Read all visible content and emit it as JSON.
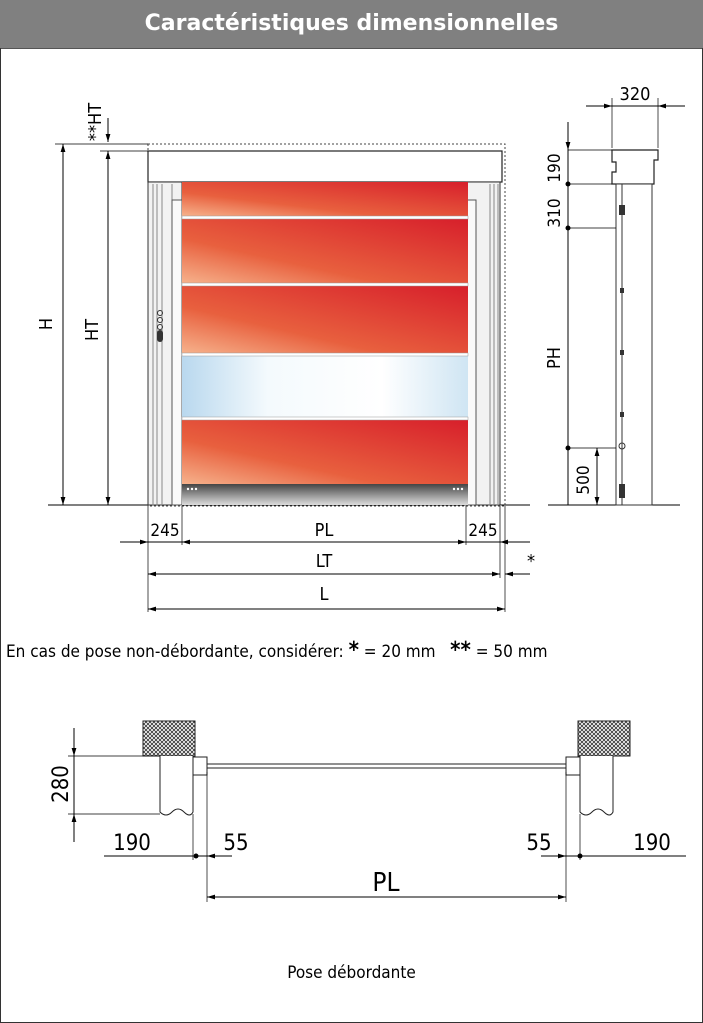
{
  "header": {
    "title": "Caractéristiques dimensionnelles"
  },
  "front_view": {
    "labels": {
      "H": "H",
      "HT": "HT",
      "HT_top": "**HT",
      "PL": "PL",
      "LT": "LT",
      "L": "L",
      "side_left": "245",
      "side_right": "245",
      "star": "*"
    }
  },
  "side_view": {
    "labels": {
      "depth": "320",
      "top": "190",
      "middle": "310",
      "PH": "PH",
      "bottom": "500"
    }
  },
  "note": {
    "text": "En cas de pose non-débordante, considérer:",
    "single_star": "*",
    "single_value": "= 20 mm",
    "double_star": "**",
    "double_value": "= 50 mm"
  },
  "plan_view": {
    "labels": {
      "height": "280",
      "left_outer": "190",
      "left_inner": "55",
      "right_inner": "55",
      "right_outer": "190",
      "PL": "PL"
    }
  },
  "caption": "Pose débordante",
  "colors": {
    "header": "#808080",
    "red": "#d7202c",
    "light": "#f4b38a",
    "window": "#d7ecf7"
  }
}
